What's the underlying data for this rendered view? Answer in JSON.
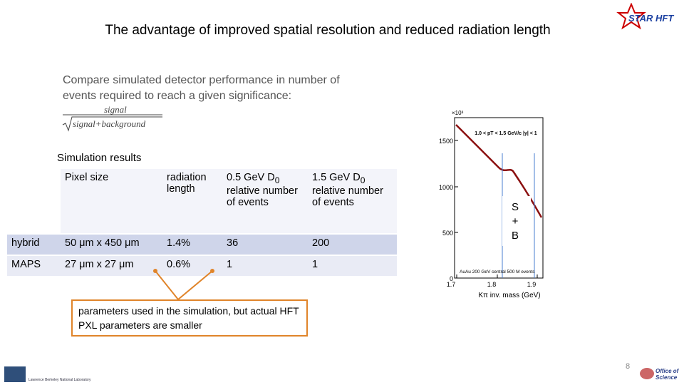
{
  "header": {
    "title": "The advantage of improved spatial resolution and reduced radiation length",
    "logo": "STAR HFT"
  },
  "intro": {
    "lines": [
      "Compare simulated detector performance in number of",
      "events required to reach a given significance:"
    ],
    "numerator": "signal",
    "denominator": "signal+background"
  },
  "table": {
    "caption": "Simulation results",
    "header": [
      {
        "main": "Pixel size"
      },
      {
        "main": "radiation length"
      },
      {
        "main": "0.5 GeV D",
        "sub": "0",
        "rest": "relative number of events"
      },
      {
        "main": "1.5 GeV D",
        "sub": "0",
        "rest": "relative number of events"
      }
    ],
    "rows": [
      [
        "hybrid",
        "50 μm x 450 μm",
        "1.4%",
        "36",
        "200"
      ],
      [
        "MAPS",
        "27 μm x 27 μm",
        "0.6%",
        "1",
        "1"
      ]
    ]
  },
  "plot": {
    "multiplier": "×10³",
    "cut_label": "1.0 < pT < 1.5 GeV/c  |y| < 1",
    "event_label": "AuAu 200 GeV central 500 M events",
    "xlabel": "Kπ inv. mass (GeV)",
    "yticks": [
      1500,
      1000,
      500,
      0
    ],
    "xticks": [
      1.7,
      1.8,
      1.9
    ],
    "box_lines": [
      "S",
      "+",
      "B"
    ]
  },
  "callout": {
    "text": "parameters used in the simulation, but actual HFT PXL parameters are smaller"
  },
  "footer": {
    "page_number": "8",
    "left_logo": "Lawrence Berkeley National Laboratory",
    "right_logo": "Office of Science"
  }
}
